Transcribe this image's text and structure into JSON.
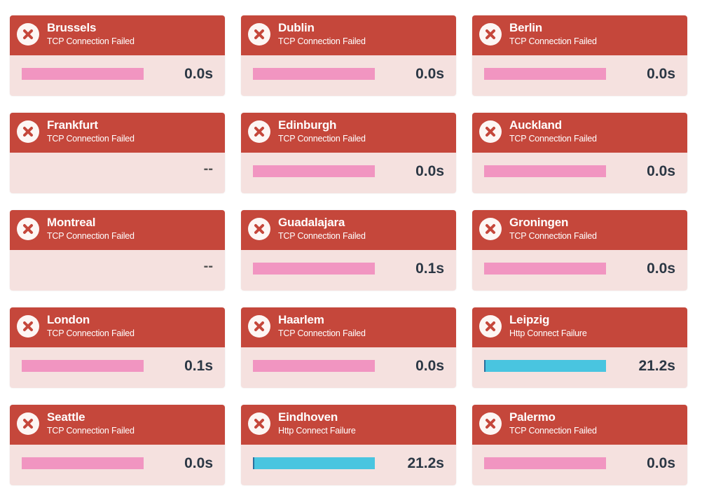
{
  "colors": {
    "header": "#c5473b",
    "body": "#f5e1df",
    "bar_tcp": "#f195c1",
    "bar_http": "#49c5e0",
    "time_text": "#2b3744"
  },
  "cards": [
    {
      "name": "Brussels",
      "message": "TCP Connection Failed",
      "time": "0.0s",
      "bar": "pink",
      "icon": "error-x-icon"
    },
    {
      "name": "Dublin",
      "message": "TCP Connection Failed",
      "time": "0.0s",
      "bar": "pink",
      "icon": "error-x-icon"
    },
    {
      "name": "Berlin",
      "message": "TCP Connection Failed",
      "time": "0.0s",
      "bar": "pink",
      "icon": "error-x-icon"
    },
    {
      "name": "Frankfurt",
      "message": "TCP Connection Failed",
      "time": "--",
      "bar": "none",
      "icon": "error-x-icon"
    },
    {
      "name": "Edinburgh",
      "message": "TCP Connection Failed",
      "time": "0.0s",
      "bar": "pink",
      "icon": "error-x-icon"
    },
    {
      "name": "Auckland",
      "message": "TCP Connection Failed",
      "time": "0.0s",
      "bar": "pink",
      "icon": "error-x-icon"
    },
    {
      "name": "Montreal",
      "message": "TCP Connection Failed",
      "time": "--",
      "bar": "none",
      "icon": "error-x-icon"
    },
    {
      "name": "Guadalajara",
      "message": "TCP Connection Failed",
      "time": "0.1s",
      "bar": "pink",
      "icon": "error-x-icon"
    },
    {
      "name": "Groningen",
      "message": "TCP Connection Failed",
      "time": "0.0s",
      "bar": "pink",
      "icon": "error-x-icon"
    },
    {
      "name": "London",
      "message": "TCP Connection Failed",
      "time": "0.1s",
      "bar": "pink",
      "icon": "error-x-icon"
    },
    {
      "name": "Haarlem",
      "message": "TCP Connection Failed",
      "time": "0.0s",
      "bar": "pink",
      "icon": "error-x-icon"
    },
    {
      "name": "Leipzig",
      "message": "Http Connect Failure",
      "time": "21.2s",
      "bar": "cyan",
      "icon": "error-x-icon"
    },
    {
      "name": "Seattle",
      "message": "TCP Connection Failed",
      "time": "0.0s",
      "bar": "pink",
      "icon": "error-x-icon"
    },
    {
      "name": "Eindhoven",
      "message": "Http Connect Failure",
      "time": "21.2s",
      "bar": "cyan",
      "icon": "error-x-icon"
    },
    {
      "name": "Palermo",
      "message": "TCP Connection Failed",
      "time": "0.0s",
      "bar": "pink",
      "icon": "error-x-icon"
    }
  ]
}
